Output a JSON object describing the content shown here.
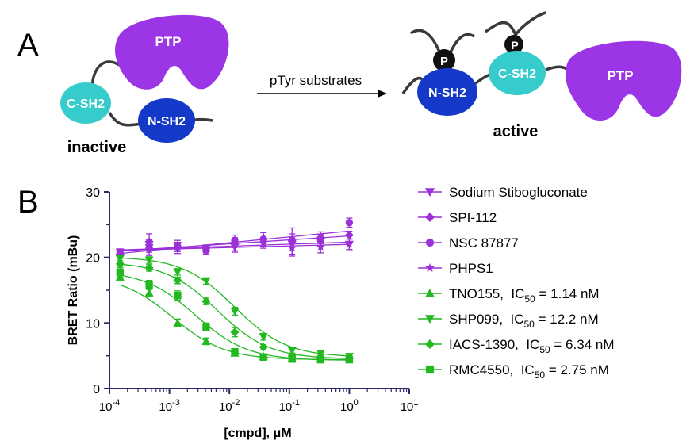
{
  "panel_a": {
    "label": "A",
    "inactive": {
      "ptp": "PTP",
      "c_sh2": "C-SH2",
      "n_sh2": "N-SH2",
      "state": "inactive"
    },
    "arrow_label": "pTyr substrates",
    "active": {
      "ptp": "PTP",
      "c_sh2": "C-SH2",
      "n_sh2": "N-SH2",
      "p": "P",
      "state": "active"
    },
    "colors": {
      "ptp": "#9b35e6",
      "c_sh2": "#36cccc",
      "n_sh2": "#1438c8",
      "chain": "#3a3a3a",
      "phospho": "#111111"
    }
  },
  "chart_data": {
    "panel_label": "B",
    "type": "scatter",
    "xlabel": "[cmpd], μM",
    "ylabel": "BRET Ratio (mBu)",
    "xscale": "log",
    "xlim": [
      0.0001,
      10
    ],
    "ylim": [
      0,
      30
    ],
    "x_ticks": [
      {
        "base": "10",
        "exp": "-4",
        "value": 0.0001
      },
      {
        "base": "10",
        "exp": "-3",
        "value": 0.001
      },
      {
        "base": "10",
        "exp": "-2",
        "value": 0.01
      },
      {
        "base": "10",
        "exp": "-1",
        "value": 0.1
      },
      {
        "base": "10",
        "exp": "0",
        "value": 1
      },
      {
        "base": "10",
        "exp": "1",
        "value": 10
      }
    ],
    "y_ticks": [
      "0",
      "10",
      "20",
      "30"
    ],
    "x": [
      0.00015,
      0.00046,
      0.00137,
      0.0041,
      0.0123,
      0.037,
      0.111,
      0.333,
      1.0
    ],
    "series": [
      {
        "name": "Sodium Stibogluconate",
        "marker": "triangle-down",
        "color": "#9b30d9",
        "values": [
          20.8,
          21.5,
          21.8,
          21.2,
          21.6,
          22.3,
          22.0,
          22.4,
          22.0
        ],
        "err": [
          0.5,
          0.7,
          0.5,
          0.5,
          0.8,
          0.6,
          1.0,
          0.8,
          0.8
        ]
      },
      {
        "name": "SPI-112",
        "marker": "diamond",
        "color": "#9b30d9",
        "values": [
          20.5,
          22.4,
          21.5,
          21.0,
          22.0,
          22.8,
          22.5,
          23.0,
          23.4
        ],
        "err": [
          0.5,
          1.2,
          0.6,
          0.5,
          1.0,
          1.0,
          2.0,
          0.9,
          0.6
        ]
      },
      {
        "name": "NSC 87877",
        "marker": "circle",
        "color": "#9b30d9",
        "values": [
          20.6,
          21.5,
          21.6,
          21.3,
          22.6,
          22.8,
          22.6,
          22.6,
          25.3
        ],
        "err": [
          0.5,
          1.2,
          1.0,
          0.6,
          0.8,
          1.0,
          1.0,
          0.9,
          0.7
        ]
      },
      {
        "name": "PHPS1",
        "marker": "star",
        "color": "#9b30d9",
        "values": [
          20.7,
          21.2,
          21.6,
          21.3,
          21.9,
          22.1,
          21.4,
          21.6,
          22.0
        ],
        "err": [
          0.4,
          0.8,
          0.6,
          0.5,
          0.9,
          0.7,
          1.2,
          0.9,
          0.8
        ]
      },
      {
        "name": "TNO155",
        "ic50_prefix": "TNO155,  IC",
        "ic50_sub": "50",
        "ic50_suffix": " = 1.14 nM",
        "marker": "triangle-up",
        "color": "#22b81f",
        "ic50_nM": 1.14,
        "values": [
          17.0,
          14.6,
          10.0,
          7.2,
          5.4,
          4.9,
          4.6,
          4.5,
          4.5
        ],
        "err": [
          0.6,
          0.6,
          0.6,
          0.5,
          0.4,
          0.4,
          0.4,
          0.4,
          0.4
        ]
      },
      {
        "name": "SHP099",
        "ic50_prefix": "SHP099,  IC",
        "ic50_sub": "50",
        "ic50_suffix": " = 12.2 nM",
        "marker": "triangle-down",
        "color": "#22b81f",
        "ic50_nM": 12.2,
        "values": [
          19.8,
          19.6,
          17.8,
          16.4,
          11.8,
          7.9,
          5.8,
          5.4,
          4.9
        ],
        "err": [
          0.5,
          0.5,
          0.5,
          0.5,
          0.6,
          0.5,
          0.4,
          0.4,
          0.4
        ]
      },
      {
        "name": "IACS-1390",
        "ic50_prefix": "IACS-1390,  IC",
        "ic50_sub": "50",
        "ic50_suffix": " = 6.34 nM",
        "marker": "diamond",
        "color": "#22b81f",
        "ic50_nM": 6.34,
        "values": [
          19.0,
          18.4,
          16.5,
          13.3,
          8.6,
          6.3,
          5.0,
          4.7,
          4.6
        ],
        "err": [
          0.5,
          0.5,
          0.5,
          0.5,
          0.7,
          0.4,
          0.4,
          0.4,
          0.4
        ]
      },
      {
        "name": "RMC4550",
        "ic50_prefix": "RMC4550,  IC",
        "ic50_sub": "50",
        "ic50_suffix": " = 2.75 nM",
        "marker": "square",
        "color": "#22b81f",
        "ic50_nM": 2.75,
        "values": [
          17.7,
          15.8,
          14.2,
          9.4,
          5.6,
          4.8,
          4.5,
          4.4,
          4.4
        ],
        "err": [
          0.7,
          0.7,
          0.7,
          0.6,
          0.5,
          0.4,
          0.4,
          0.4,
          0.4
        ]
      }
    ],
    "legend_position": "right"
  }
}
